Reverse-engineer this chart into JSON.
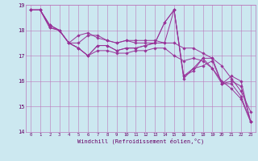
{
  "xlabel": "Windchill (Refroidissement éolien,°C)",
  "background_color": "#cce8f0",
  "grid_color": "#bb77bb",
  "line_color": "#993399",
  "marker_color": "#993399",
  "xlim": [
    -0.5,
    23.5
  ],
  "ylim": [
    14.0,
    19.0
  ],
  "yticks": [
    14,
    15,
    16,
    17,
    18,
    19
  ],
  "xticks": [
    0,
    1,
    2,
    3,
    4,
    5,
    6,
    7,
    8,
    9,
    10,
    11,
    12,
    13,
    14,
    15,
    16,
    17,
    18,
    19,
    20,
    21,
    22,
    23
  ],
  "lines": [
    [
      18.8,
      18.8,
      18.1,
      18.0,
      17.5,
      17.5,
      17.8,
      17.8,
      17.6,
      17.5,
      17.6,
      17.6,
      17.6,
      17.6,
      17.5,
      17.5,
      17.3,
      17.3,
      17.1,
      16.9,
      16.6,
      16.1,
      15.6,
      14.8
    ],
    [
      18.8,
      18.8,
      18.1,
      18.0,
      17.5,
      17.3,
      17.0,
      17.2,
      17.2,
      17.1,
      17.1,
      17.2,
      17.2,
      17.3,
      17.3,
      17.0,
      16.8,
      16.9,
      16.8,
      16.5,
      16.0,
      15.7,
      15.3,
      14.4
    ],
    [
      18.8,
      18.8,
      18.2,
      18.0,
      17.5,
      17.3,
      17.0,
      17.4,
      17.4,
      17.2,
      17.3,
      17.3,
      17.4,
      17.5,
      18.3,
      18.8,
      16.2,
      16.4,
      16.9,
      16.9,
      15.9,
      15.9,
      15.4,
      14.4
    ],
    [
      18.8,
      18.8,
      18.2,
      18.0,
      17.5,
      17.8,
      17.9,
      17.7,
      17.6,
      17.5,
      17.6,
      17.5,
      17.5,
      17.5,
      17.5,
      18.8,
      16.1,
      16.5,
      16.6,
      16.8,
      15.9,
      16.2,
      16.0,
      14.4
    ],
    [
      18.8,
      18.8,
      18.2,
      18.0,
      17.5,
      17.3,
      17.0,
      17.4,
      17.4,
      17.2,
      17.3,
      17.3,
      17.4,
      17.5,
      18.3,
      18.8,
      16.2,
      16.5,
      16.9,
      16.5,
      15.9,
      16.0,
      15.8,
      14.4
    ]
  ]
}
